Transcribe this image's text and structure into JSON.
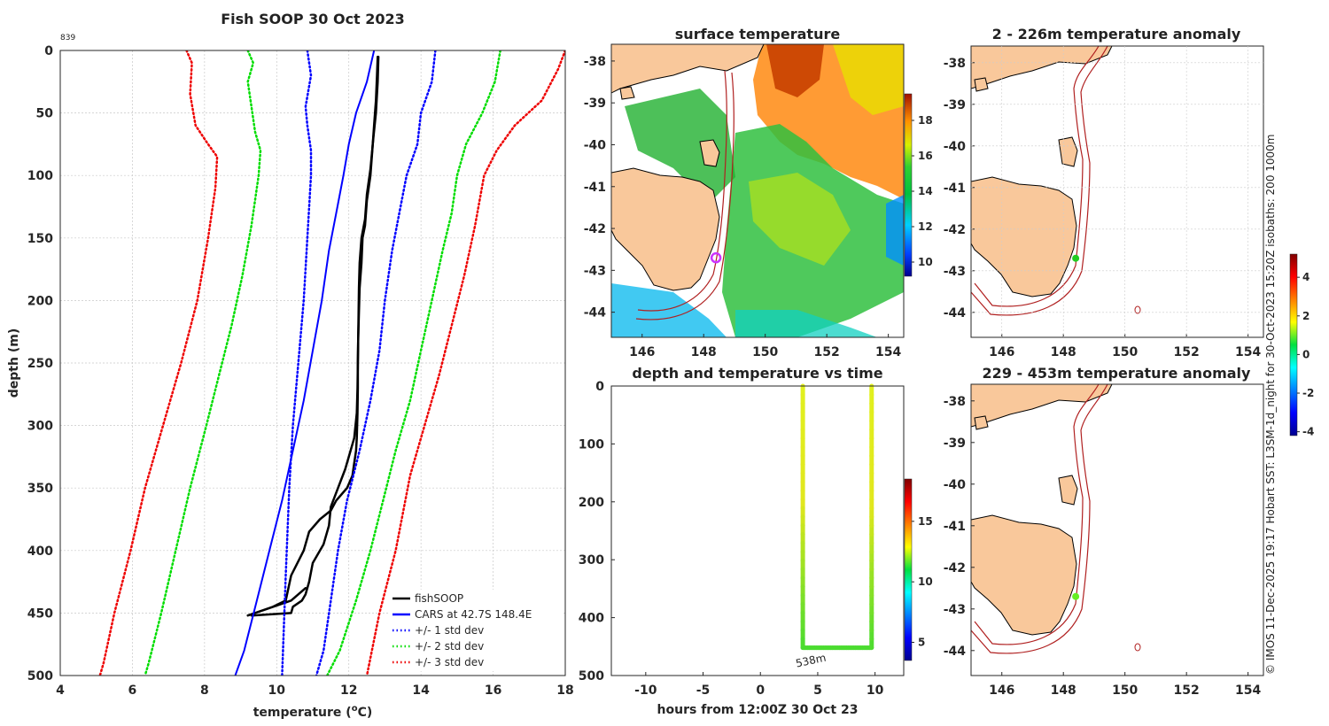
{
  "colors": {
    "black": "#000000",
    "cars": "#0000ff",
    "std1": "#0000ff",
    "std2": "#00dd00",
    "std3": "#ee0000",
    "land": "#f9c89b",
    "isobath": "#b02020"
  },
  "chart_data": [
    {
      "id": "profile",
      "type": "line",
      "title": "Fish SOOP 30 Oct 2023",
      "corner_label": "839",
      "xlabel": "temperature (°C)",
      "xlabel_main": "temperature (",
      "xlabel_sup": "o",
      "xlabel_end": "C)",
      "ylabel": "depth (m)",
      "xlim": [
        4,
        18
      ],
      "ylim": [
        0,
        500
      ],
      "xticks": [
        4,
        6,
        8,
        10,
        12,
        14,
        16,
        18
      ],
      "yticks": [
        0,
        50,
        100,
        150,
        200,
        250,
        300,
        350,
        400,
        450,
        500
      ],
      "grid": true,
      "legend_position": "bottom-right",
      "series": [
        {
          "name": "fishSOOP",
          "style": "solid",
          "color": "#000000",
          "width": 2.5,
          "x": [
            12.8,
            12.78,
            12.75,
            12.7,
            12.65,
            12.6,
            12.5,
            12.45,
            12.38,
            12.35,
            12.3,
            12.28,
            12.26,
            12.25,
            12.25,
            12.24,
            12.22,
            12.2,
            12.15,
            12.1,
            11.95,
            11.65,
            11.5,
            11.2,
            10.9,
            10.75,
            10.4,
            10.25,
            9.9,
            9.2,
            9.7,
            10.4,
            10.8
          ],
          "y": [
            5,
            20,
            40,
            60,
            80,
            100,
            120,
            140,
            150,
            170,
            190,
            210,
            230,
            250,
            270,
            290,
            310,
            320,
            330,
            340,
            350,
            360,
            368,
            375,
            385,
            400,
            420,
            440,
            445,
            452,
            447,
            440,
            430
          ]
        },
        {
          "name": "fishSOOP",
          "style": "solid",
          "color": "#000000",
          "width": 2.5,
          "x": [
            12.82,
            12.8,
            12.75,
            12.68,
            12.6,
            12.5,
            12.45,
            12.35,
            12.3,
            12.28,
            12.27,
            12.26,
            12.25,
            12.24,
            12.22,
            12.15,
            12.0,
            11.9,
            11.7,
            11.5,
            11.45,
            11.3,
            11.0,
            10.9,
            10.8,
            10.7,
            10.45,
            10.4,
            9.3
          ],
          "y": [
            5,
            25,
            50,
            70,
            95,
            115,
            135,
            150,
            170,
            190,
            210,
            230,
            250,
            270,
            290,
            310,
            325,
            335,
            350,
            365,
            380,
            395,
            410,
            425,
            435,
            440,
            445,
            450,
            452
          ]
        },
        {
          "name": "CARS at 42.7S 148.4E",
          "style": "solid",
          "color": "#0000ff",
          "width": 2,
          "x": [
            12.7,
            12.5,
            12.2,
            12.0,
            11.85,
            11.65,
            11.45,
            11.25,
            11.0,
            10.75,
            10.45,
            10.15,
            9.8,
            9.45,
            9.1,
            8.85
          ],
          "y": [
            0,
            25,
            50,
            75,
            100,
            130,
            160,
            200,
            240,
            280,
            320,
            360,
            400,
            440,
            480,
            500
          ]
        },
        {
          "name": "+/- 1 std dev",
          "style": "dotted",
          "color": "#0000ff",
          "width": 2.5,
          "x": [
            10.85,
            10.95,
            10.8,
            10.85,
            10.95,
            10.95,
            10.85,
            10.75,
            10.6,
            10.45,
            10.35,
            10.25,
            10.15
          ],
          "y": [
            0,
            20,
            45,
            60,
            80,
            100,
            150,
            200,
            250,
            300,
            350,
            420,
            500
          ]
        },
        {
          "name": "+/- 1 std dev",
          "style": "dotted",
          "color": "#0000ff",
          "width": 2.5,
          "x": [
            14.4,
            14.3,
            14.0,
            13.9,
            13.6,
            13.4,
            13.2,
            13.0,
            12.85,
            12.6,
            12.3,
            11.95,
            11.7,
            11.5,
            11.3,
            11.1
          ],
          "y": [
            0,
            25,
            50,
            75,
            100,
            130,
            160,
            200,
            240,
            280,
            320,
            360,
            400,
            440,
            480,
            500
          ]
        },
        {
          "name": "+/- 2 std dev",
          "style": "dotted",
          "color": "#00dd00",
          "width": 2.5,
          "x": [
            9.2,
            9.35,
            9.2,
            9.4,
            9.55,
            9.5,
            9.3,
            9.05,
            8.75,
            8.4,
            8.05,
            7.6,
            7.2,
            6.8,
            6.45,
            6.35
          ],
          "y": [
            0,
            10,
            25,
            65,
            80,
            100,
            140,
            180,
            220,
            260,
            300,
            350,
            400,
            450,
            490,
            500
          ]
        },
        {
          "name": "+/- 2 std dev",
          "style": "dotted",
          "color": "#00dd00",
          "width": 2.5,
          "x": [
            16.2,
            16.05,
            15.7,
            15.25,
            15.0,
            14.85,
            14.6,
            14.3,
            14.0,
            13.7,
            13.3,
            12.95,
            12.6,
            12.2,
            11.75,
            11.4
          ],
          "y": [
            0,
            25,
            50,
            75,
            100,
            130,
            160,
            200,
            240,
            280,
            320,
            360,
            400,
            440,
            480,
            500
          ]
        },
        {
          "name": "+/- 3 std dev",
          "style": "dotted",
          "color": "#ee0000",
          "width": 2.5,
          "x": [
            7.5,
            7.65,
            7.6,
            7.75,
            8.1,
            8.35,
            8.3,
            8.1,
            7.8,
            7.35,
            6.85,
            6.35,
            5.95,
            5.5,
            5.2,
            5.1
          ],
          "y": [
            0,
            10,
            35,
            60,
            75,
            85,
            110,
            150,
            200,
            250,
            300,
            350,
            400,
            450,
            490,
            500
          ]
        },
        {
          "name": "+/- 3 std dev",
          "style": "dotted",
          "color": "#ee0000",
          "width": 2.5,
          "x": [
            18.0,
            17.8,
            17.35,
            16.6,
            16.1,
            15.75,
            15.5,
            15.2,
            14.85,
            14.5,
            14.1,
            13.7,
            13.3,
            12.85,
            12.5
          ],
          "y": [
            0,
            15,
            40,
            60,
            80,
            100,
            140,
            180,
            220,
            260,
            300,
            340,
            400,
            450,
            500
          ]
        }
      ],
      "legend": [
        {
          "label": "fishSOOP",
          "color": "#000000",
          "style": "solid"
        },
        {
          "label": "CARS at 42.7S 148.4E",
          "color": "#0000ff",
          "style": "solid"
        },
        {
          "label": "+/- 1 std dev",
          "color": "#0000ff",
          "style": "dotted"
        },
        {
          "label": "+/- 2 std dev",
          "color": "#00dd00",
          "style": "dotted"
        },
        {
          "label": "+/- 3 std dev",
          "color": "#ee0000",
          "style": "dotted"
        }
      ]
    },
    {
      "id": "sst_map",
      "type": "heatmap",
      "title": "surface temperature",
      "xlim": [
        145,
        154.5
      ],
      "ylim": [
        -44.6,
        -37.6
      ],
      "xticks": [
        146,
        148,
        150,
        152,
        154
      ],
      "yticks": [
        -38,
        -39,
        -40,
        -41,
        -42,
        -43,
        -44
      ],
      "colorbar": {
        "min": 9.2,
        "max": 19.5,
        "ticks": [
          10,
          12,
          14,
          16,
          18
        ]
      },
      "marker": {
        "lon": 148.4,
        "lat": -42.7,
        "color": "#cc33ff"
      }
    },
    {
      "id": "depth_time",
      "type": "scatter",
      "title": "depth and temperature vs time",
      "xlabel": "hours from 12:00Z 30 Oct 23",
      "xlim": [
        -13,
        12.5
      ],
      "ylim": [
        0,
        500
      ],
      "xticks": [
        -10,
        -5,
        0,
        5,
        10
      ],
      "yticks": [
        0,
        100,
        200,
        300,
        400,
        500
      ],
      "annotation": "538m",
      "annotation_x": 3.5,
      "annotation_y": 478,
      "track": {
        "x": [
          3.7,
          3.7,
          9.7,
          9.7
        ],
        "y": [
          0,
          452,
          452,
          0
        ],
        "temp_top": 14.8,
        "temp_bottom": 12.0
      },
      "colorbar": {
        "min": 3.5,
        "max": 18.5,
        "ticks": [
          5,
          10,
          15
        ]
      }
    },
    {
      "id": "anom_shallow",
      "type": "heatmap",
      "title": "2 - 226m temperature anomaly",
      "xlim": [
        145,
        154.5
      ],
      "ylim": [
        -44.6,
        -37.6
      ],
      "xticks": [
        146,
        148,
        150,
        152,
        154
      ],
      "yticks": [
        -38,
        -39,
        -40,
        -41,
        -42,
        -43,
        -44
      ],
      "marker": {
        "lon": 148.4,
        "lat": -42.7,
        "color": "#22cc22"
      }
    },
    {
      "id": "anom_deep",
      "type": "heatmap",
      "title": "229 - 453m temperature anomaly",
      "xlim": [
        145,
        154.5
      ],
      "ylim": [
        -44.6,
        -37.6
      ],
      "xticks": [
        146,
        148,
        150,
        152,
        154
      ],
      "yticks": [
        -38,
        -39,
        -40,
        -41,
        -42,
        -43,
        -44
      ],
      "marker": {
        "lon": 148.4,
        "lat": -42.7,
        "color": "#66ee22"
      }
    },
    {
      "id": "anom_colorbar",
      "type": "heatmap",
      "min": -4.2,
      "max": 5.2,
      "ticks": [
        -4,
        -2,
        0,
        2,
        4
      ]
    }
  ],
  "credit": "© IMOS 11-Dec-2025 19:17 Hobart SST: L3SM-1d_night for 30-Oct-2023 15:20Z isobaths: 200  1000m"
}
